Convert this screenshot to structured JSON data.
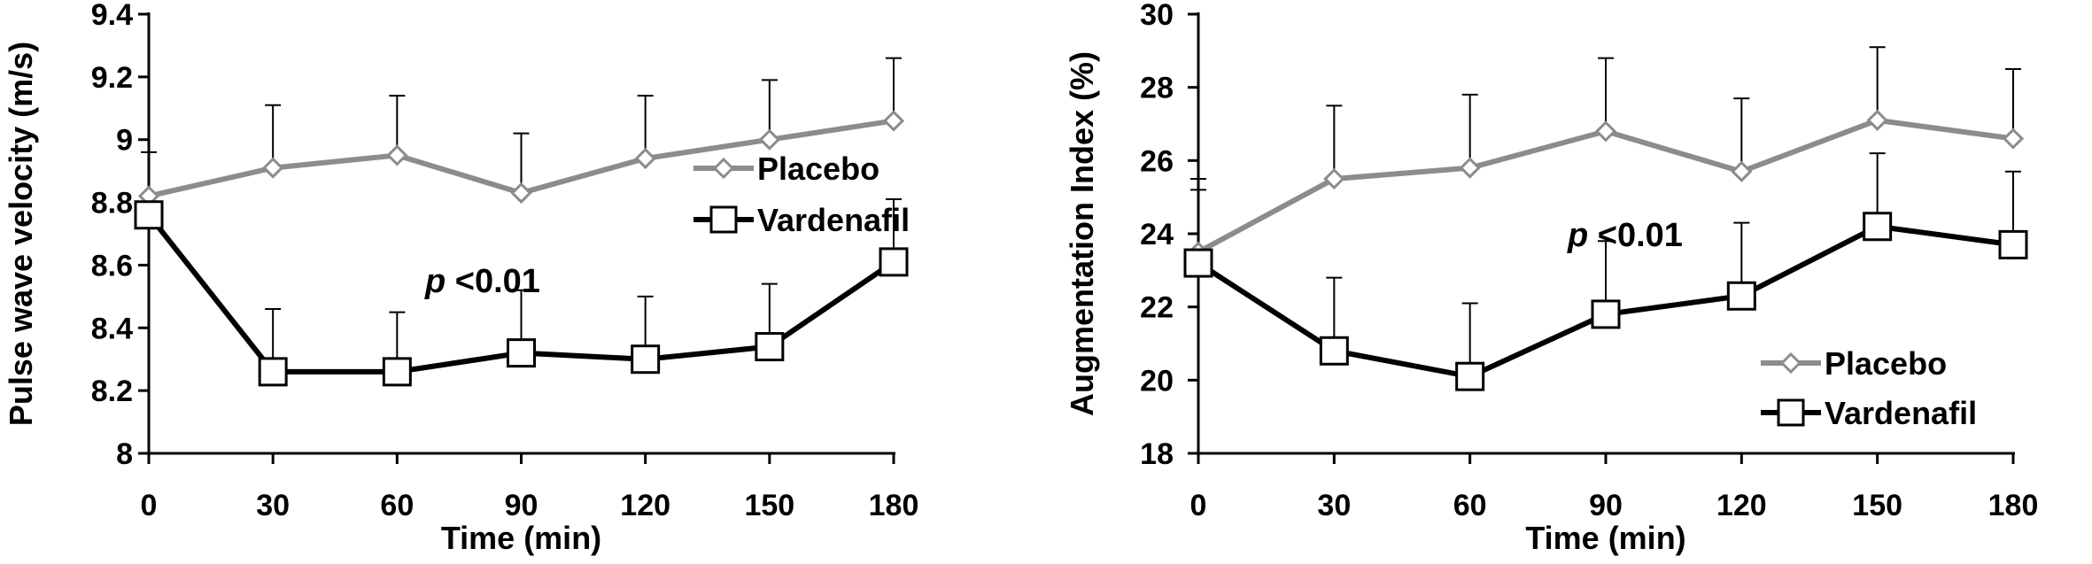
{
  "chart_data": [
    {
      "type": "line",
      "xlabel": "Time (min)",
      "ylabel": "Pulse wave velocity (m/s)",
      "x": [
        0,
        30,
        60,
        90,
        120,
        150,
        180
      ],
      "xlim": [
        0,
        180
      ],
      "ylim": [
        8,
        9.4
      ],
      "y_ticks": [
        "8",
        "8.2",
        "8.4",
        "8.6",
        "8.8",
        "9",
        "9.2",
        "9.4"
      ],
      "x_ticks": [
        "0",
        "30",
        "60",
        "90",
        "120",
        "150",
        "180"
      ],
      "grid": false,
      "legend_position": "right",
      "annotation": {
        "italic": "p",
        "text": " <0.01"
      },
      "series": [
        {
          "name": "Placebo",
          "color": "#8c8c8c",
          "marker": "diamond",
          "values": [
            8.82,
            8.91,
            8.95,
            8.83,
            8.94,
            9.0,
            9.06
          ],
          "error": [
            0.0,
            0.2,
            0.19,
            0.19,
            0.2,
            0.19,
            0.2
          ]
        },
        {
          "name": "Vardenafil",
          "color": "#000000",
          "marker": "square",
          "values": [
            8.76,
            8.26,
            8.26,
            8.32,
            8.3,
            8.34,
            8.61
          ],
          "error": [
            0.2,
            0.2,
            0.19,
            0.2,
            0.2,
            0.2,
            0.2
          ]
        }
      ]
    },
    {
      "type": "line",
      "xlabel": "Time (min)",
      "ylabel": "Augmentation Index (%)",
      "x": [
        0,
        30,
        60,
        90,
        120,
        150,
        180
      ],
      "xlim": [
        0,
        180
      ],
      "ylim": [
        18,
        30
      ],
      "y_ticks": [
        "18",
        "20",
        "22",
        "24",
        "26",
        "28",
        "30"
      ],
      "x_ticks": [
        "0",
        "30",
        "60",
        "90",
        "120",
        "150",
        "180"
      ],
      "grid": false,
      "legend_position": "bottom-right",
      "annotation": {
        "italic": "p",
        "text": " <0.01"
      },
      "series": [
        {
          "name": "Placebo",
          "color": "#8c8c8c",
          "marker": "diamond",
          "values": [
            23.5,
            25.5,
            25.8,
            26.8,
            25.7,
            27.1,
            26.6
          ],
          "error": [
            2.0,
            2.0,
            2.0,
            2.0,
            2.0,
            2.0,
            1.9
          ]
        },
        {
          "name": "Vardenafil",
          "color": "#000000",
          "marker": "square",
          "values": [
            23.2,
            20.8,
            20.1,
            21.8,
            22.3,
            24.2,
            23.7
          ],
          "error": [
            2.0,
            2.0,
            2.0,
            2.0,
            2.0,
            2.0,
            2.0
          ]
        }
      ]
    }
  ]
}
